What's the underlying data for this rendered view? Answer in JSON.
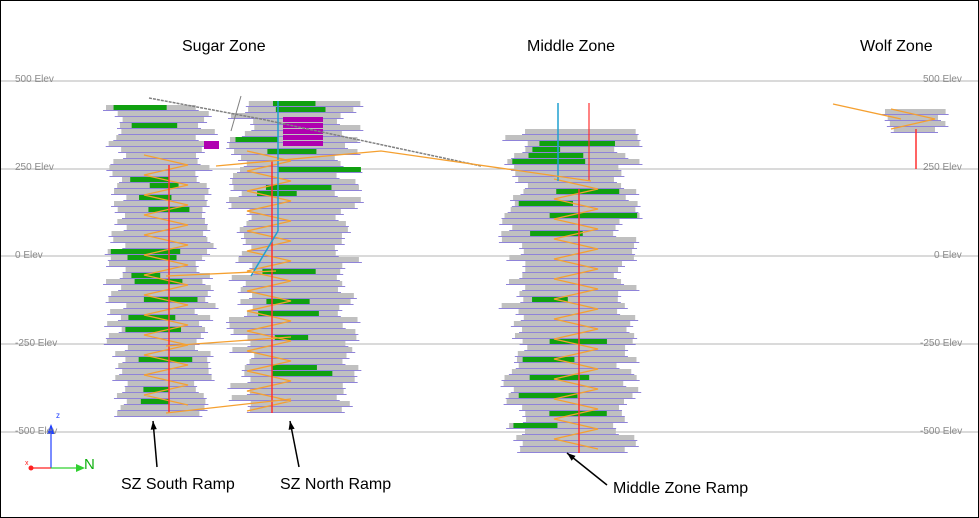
{
  "zones": {
    "sugar": "Sugar Zone",
    "middle": "Middle Zone",
    "wolf": "Wolf Zone"
  },
  "elevations": [
    "500 Elev",
    "250 Elev",
    "0 Elev",
    "-250 Elev",
    "-500 Elev"
  ],
  "callouts": {
    "sz_south": "SZ South Ramp",
    "sz_north": "SZ North Ramp",
    "middle": "Middle Zone Ramp"
  },
  "axis_triad": {
    "north": "N",
    "z": "z",
    "x": "x"
  },
  "colors": {
    "stope": "#c0c0c0",
    "developed_stope": "#10a010",
    "level_drive": "#6a5acd",
    "ramp": "#f5a030",
    "raise": "#ff3030",
    "shaft": "#20a0d0",
    "highlight_stope": "#b000b0",
    "surface_workings": "#808080",
    "grid": "#b4b4b4"
  }
}
